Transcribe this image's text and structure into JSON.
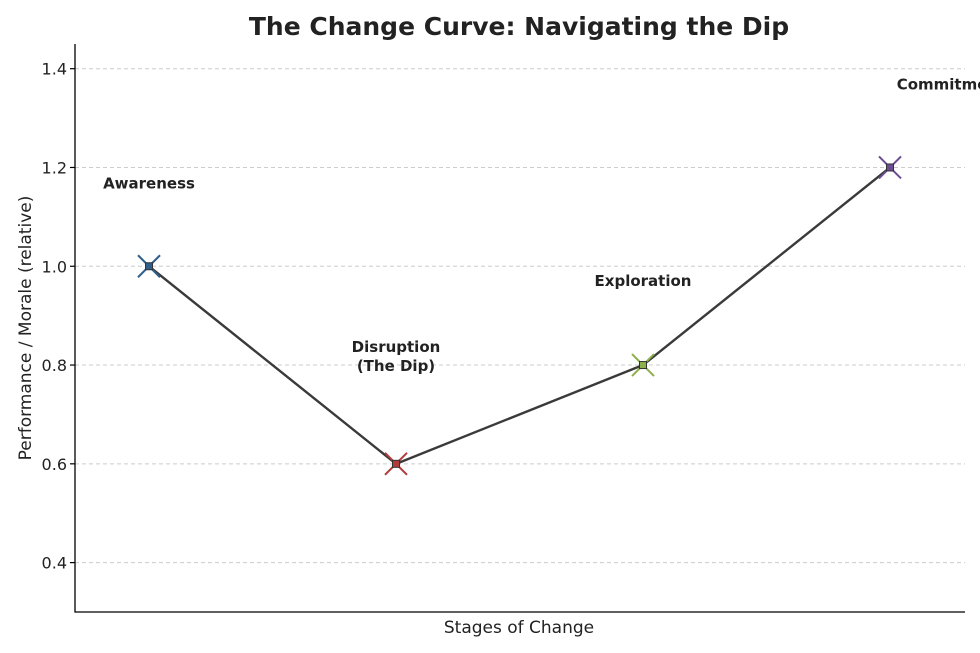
{
  "chart_data": {
    "type": "line",
    "title": "The Change Curve: Navigating the Dip",
    "xlabel": "Stages of Change",
    "ylabel": "Performance / Morale (relative)",
    "ylim": [
      0.3,
      1.45
    ],
    "yticks": [
      0.4,
      0.6,
      0.8,
      1.0,
      1.2,
      1.4
    ],
    "ytick_labels": [
      "0.4",
      "0.6",
      "0.8",
      "1.0",
      "1.2",
      "1.4"
    ],
    "grid": "horizontal dashed",
    "line_color": "#3a3a3a",
    "points": [
      {
        "stage": 1,
        "value": 1.0,
        "label_lines": [
          "Awareness"
        ],
        "color": "#2f5f8a"
      },
      {
        "stage": 2,
        "value": 0.6,
        "label_lines": [
          "Disruption",
          "(The Dip)"
        ],
        "color": "#b23b3b"
      },
      {
        "stage": 3,
        "value": 0.8,
        "label_lines": [
          "Exploration"
        ],
        "color": "#8db04a"
      },
      {
        "stage": 4,
        "value": 1.2,
        "label_lines": [
          "Commitment"
        ],
        "color": "#6a4c93"
      }
    ]
  }
}
